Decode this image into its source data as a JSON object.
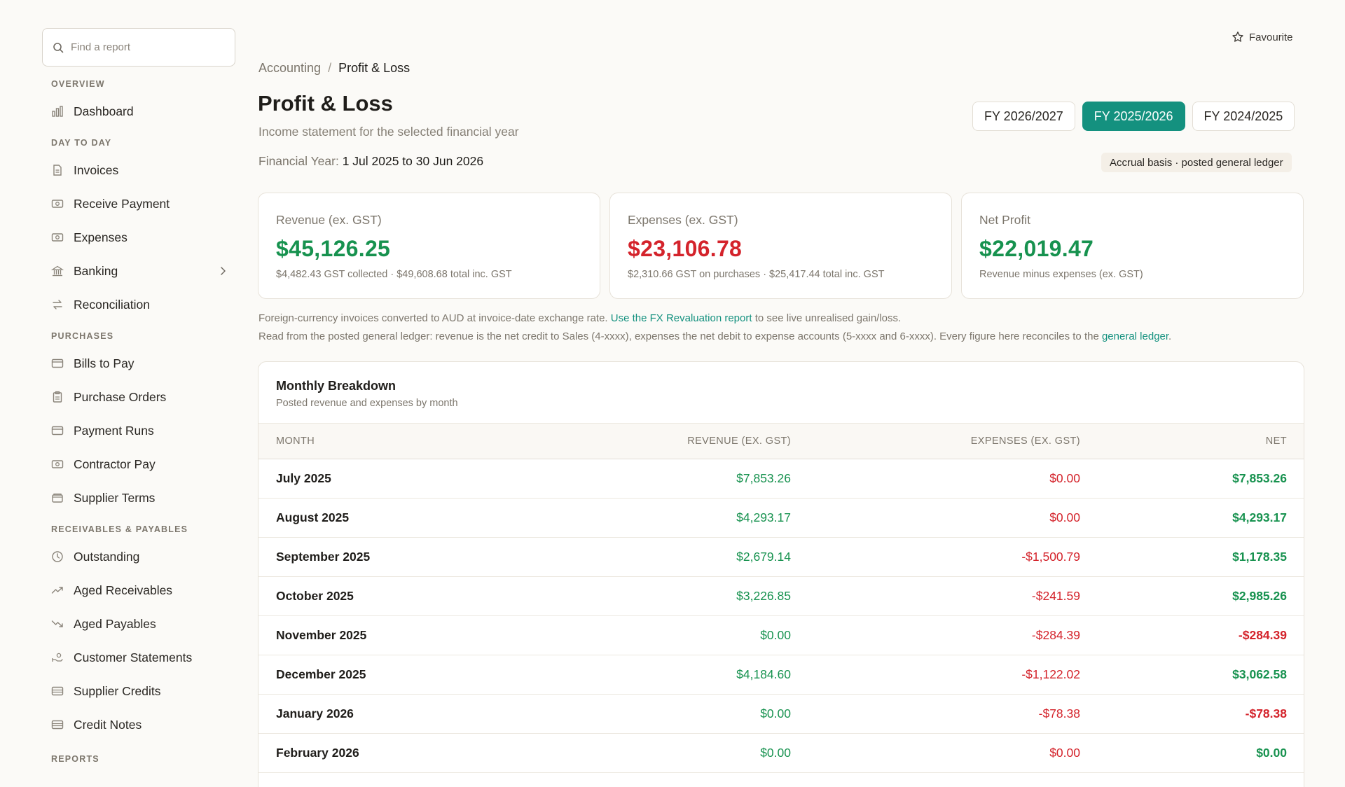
{
  "sidebar": {
    "search_placeholder": "Find a report",
    "sections": {
      "overview": "OVERVIEW",
      "day_to_day": "DAY TO DAY",
      "purchases": "PURCHASES",
      "receivables": "RECEIVABLES & PAYABLES",
      "reports": "REPORTS"
    },
    "items": {
      "dashboard": "Dashboard",
      "invoices": "Invoices",
      "receive_payment": "Receive Payment",
      "expenses": "Expenses",
      "banking": "Banking",
      "reconciliation": "Reconciliation",
      "bills_to_pay": "Bills to Pay",
      "purchase_orders": "Purchase Orders",
      "payment_runs": "Payment Runs",
      "contractor_pay": "Contractor Pay",
      "supplier_terms": "Supplier Terms",
      "outstanding": "Outstanding",
      "aged_receivables": "Aged Receivables",
      "aged_payables": "Aged Payables",
      "customer_statements": "Customer Statements",
      "supplier_credits": "Supplier Credits",
      "credit_notes": "Credit Notes"
    }
  },
  "header": {
    "favourite": "Favourite",
    "breadcrumb": {
      "parent": "Accounting",
      "separator": "/",
      "current": "Profit & Loss"
    },
    "title": "Profit & Loss",
    "subtitle": "Income statement for the selected financial year",
    "fy_label": "Financial Year:",
    "fy_value": "1 Jul 2025 to 30 Jun 2026",
    "basis_badge": "Accrual basis · posted general ledger",
    "fy_tabs": [
      "FY 2026/2027",
      "FY 2025/2026",
      "FY 2024/2025"
    ],
    "fy_tab_active": "FY 2025/2026"
  },
  "cards": {
    "revenue": {
      "label": "Revenue (ex. GST)",
      "value": "$45,126.25",
      "note": "$4,482.43 GST collected · $49,608.68 total inc. GST"
    },
    "expenses": {
      "label": "Expenses (ex. GST)",
      "value": "$23,106.78",
      "note": "$2,310.66 GST on purchases · $25,417.44 total inc. GST"
    },
    "net": {
      "label": "Net Profit",
      "value": "$22,019.47",
      "note": "Revenue minus expenses (ex. GST)"
    }
  },
  "notes": {
    "fx_text": "Foreign-currency invoices converted to AUD at invoice-date exchange rate.",
    "fx_link": "Use the FX Revaluation report",
    "fx_tail": "to see live unrealised gain/loss.",
    "ledger_text": "Read from the posted general ledger: revenue is the net credit to Sales (4-xxxx), expenses the net debit to expense accounts (5-xxxx and 6-xxxx). Every figure here reconciles to the",
    "ledger_link": "general ledger",
    "ledger_tail": "."
  },
  "breakdown": {
    "title": "Monthly Breakdown",
    "subtitle": "Posted revenue and expenses by month",
    "columns": {
      "month": "MONTH",
      "revenue": "REVENUE (EX. GST)",
      "expenses": "EXPENSES (EX. GST)",
      "net": "NET"
    },
    "rows": [
      {
        "month": "July 2025",
        "revenue": "$7,853.26",
        "expenses": "$0.00",
        "net": "$7,853.26",
        "net_positive": true
      },
      {
        "month": "August 2025",
        "revenue": "$4,293.17",
        "expenses": "$0.00",
        "net": "$4,293.17",
        "net_positive": true
      },
      {
        "month": "September 2025",
        "revenue": "$2,679.14",
        "expenses": "-$1,500.79",
        "net": "$1,178.35",
        "net_positive": true
      },
      {
        "month": "October 2025",
        "revenue": "$3,226.85",
        "expenses": "-$241.59",
        "net": "$2,985.26",
        "net_positive": true
      },
      {
        "month": "November 2025",
        "revenue": "$0.00",
        "expenses": "-$284.39",
        "net": "-$284.39",
        "net_positive": false
      },
      {
        "month": "December 2025",
        "revenue": "$4,184.60",
        "expenses": "-$1,122.02",
        "net": "$3,062.58",
        "net_positive": true
      },
      {
        "month": "January 2026",
        "revenue": "$0.00",
        "expenses": "-$78.38",
        "net": "-$78.38",
        "net_positive": false
      },
      {
        "month": "February 2026",
        "revenue": "$0.00",
        "expenses": "$0.00",
        "net": "$0.00",
        "net_positive": true
      }
    ]
  },
  "colors": {
    "accent": "#14917f",
    "positive": "#17924f",
    "negative": "#d4232b",
    "background": "#fbfaf7"
  }
}
